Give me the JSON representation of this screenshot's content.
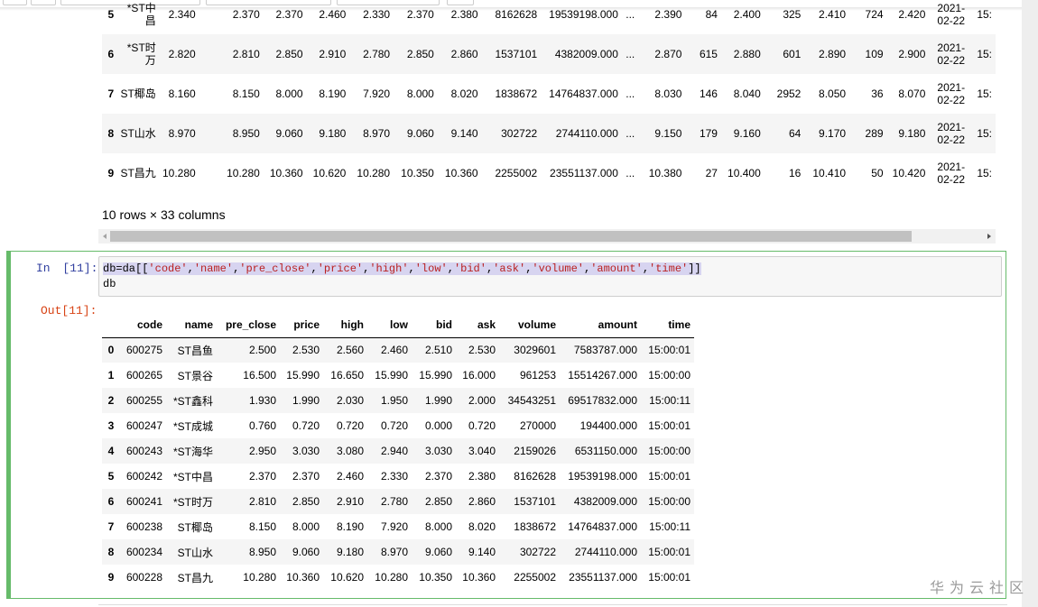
{
  "top_table": {
    "shape": "10 rows × 33 columns",
    "rows": [
      [
        "5",
        "*ST中昌",
        "2.340",
        "2.370",
        "2.370",
        "2.460",
        "2.330",
        "2.370",
        "2.380",
        "8162628",
        "19539198.000",
        "...",
        "2.390",
        "84",
        "2.400",
        "325",
        "2.410",
        "724",
        "2.420",
        "2021-02-22",
        "15:"
      ],
      [
        "6",
        "*ST时万",
        "2.820",
        "2.810",
        "2.850",
        "2.910",
        "2.780",
        "2.850",
        "2.860",
        "1537101",
        "4382009.000",
        "...",
        "2.870",
        "615",
        "2.880",
        "601",
        "2.890",
        "109",
        "2.900",
        "2021-02-22",
        "15:"
      ],
      [
        "7",
        "ST椰岛",
        "8.160",
        "8.150",
        "8.000",
        "8.190",
        "7.920",
        "8.000",
        "8.020",
        "1838672",
        "14764837.000",
        "...",
        "8.030",
        "146",
        "8.040",
        "2952",
        "8.050",
        "36",
        "8.070",
        "2021-02-22",
        "15:"
      ],
      [
        "8",
        "ST山水",
        "8.970",
        "8.950",
        "9.060",
        "9.180",
        "8.970",
        "9.060",
        "9.140",
        "302722",
        "2744110.000",
        "...",
        "9.150",
        "179",
        "9.160",
        "64",
        "9.170",
        "289",
        "9.180",
        "2021-02-22",
        "15:"
      ],
      [
        "9",
        "ST昌九",
        "10.280",
        "10.280",
        "10.360",
        "10.620",
        "10.280",
        "10.350",
        "10.360",
        "2255002",
        "23551137.000",
        "...",
        "10.380",
        "27",
        "10.400",
        "16",
        "10.410",
        "50",
        "10.420",
        "2021-02-22",
        "15:"
      ]
    ]
  },
  "cell": {
    "prompt_in": "In [11]:",
    "prompt_out": "Out[11]:",
    "code_lines": [
      [
        "db=da[[",
        "'code'",
        ",",
        "'name'",
        ",",
        "'pre_close'",
        ",",
        "'price'",
        ",",
        "'high'",
        ",",
        "'low'",
        ",",
        "'bid'",
        ",",
        "'ask'",
        ",",
        "'volume'",
        ",",
        "'amount'",
        ",",
        "'time'",
        "]]"
      ],
      [
        "db"
      ]
    ]
  },
  "output_table": {
    "columns": [
      "code",
      "name",
      "pre_close",
      "price",
      "high",
      "low",
      "bid",
      "ask",
      "volume",
      "amount",
      "time"
    ],
    "rows": [
      [
        "0",
        "600275",
        "ST昌鱼",
        "2.500",
        "2.530",
        "2.560",
        "2.460",
        "2.510",
        "2.530",
        "3029601",
        "7583787.000",
        "15:00:01"
      ],
      [
        "1",
        "600265",
        "ST景谷",
        "16.500",
        "15.990",
        "16.650",
        "15.990",
        "15.990",
        "16.000",
        "961253",
        "15514267.000",
        "15:00:00"
      ],
      [
        "2",
        "600255",
        "*ST鑫科",
        "1.930",
        "1.990",
        "2.030",
        "1.950",
        "1.990",
        "2.000",
        "34543251",
        "69517832.000",
        "15:00:11"
      ],
      [
        "3",
        "600247",
        "*ST成城",
        "0.760",
        "0.720",
        "0.720",
        "0.720",
        "0.000",
        "0.720",
        "270000",
        "194400.000",
        "15:00:01"
      ],
      [
        "4",
        "600243",
        "*ST海华",
        "2.950",
        "3.030",
        "3.080",
        "2.940",
        "3.030",
        "3.040",
        "2159026",
        "6531150.000",
        "15:00:00"
      ],
      [
        "5",
        "600242",
        "*ST中昌",
        "2.370",
        "2.370",
        "2.460",
        "2.330",
        "2.370",
        "2.380",
        "8162628",
        "19539198.000",
        "15:00:01"
      ],
      [
        "6",
        "600241",
        "*ST时万",
        "2.810",
        "2.850",
        "2.910",
        "2.780",
        "2.850",
        "2.860",
        "1537101",
        "4382009.000",
        "15:00:00"
      ],
      [
        "7",
        "600238",
        "ST椰岛",
        "8.150",
        "8.000",
        "8.190",
        "7.920",
        "8.000",
        "8.020",
        "1838672",
        "14764837.000",
        "15:00:11"
      ],
      [
        "8",
        "600234",
        "ST山水",
        "8.950",
        "9.060",
        "9.180",
        "8.970",
        "9.060",
        "9.140",
        "302722",
        "2744110.000",
        "15:00:01"
      ],
      [
        "9",
        "600228",
        "ST昌九",
        "10.280",
        "10.360",
        "10.620",
        "10.280",
        "10.350",
        "10.360",
        "2255002",
        "23551137.000",
        "15:00:01"
      ]
    ]
  },
  "watermark": "华为云社区"
}
